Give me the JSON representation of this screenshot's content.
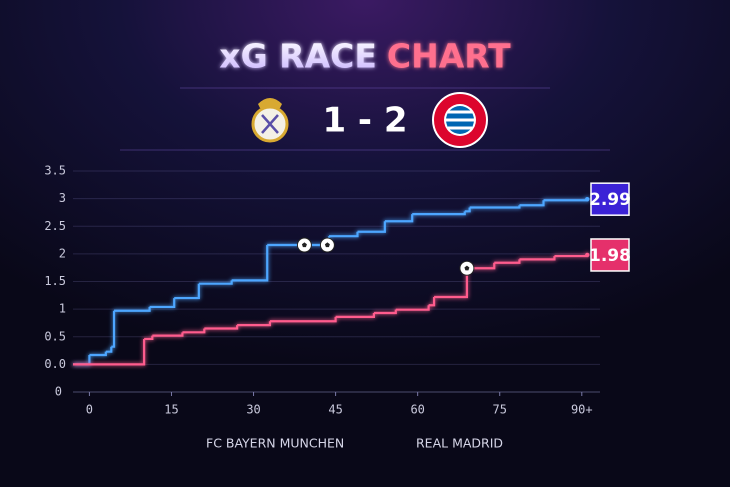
{
  "chart_data": {
    "type": "step",
    "title_main": "xG RACE",
    "title_accent": "CHART",
    "score": "1 - 2",
    "xlim": [
      -3,
      91.5
    ],
    "ylim": [
      -0.5,
      3.5
    ],
    "xticks": [
      0,
      15,
      30,
      45,
      60,
      75,
      {
        "value": 90,
        "label": "90+"
      }
    ],
    "yticks": [
      3.5,
      3,
      2.5,
      2,
      1.5,
      1,
      0.5,
      {
        "value": 0,
        "label": "0.0"
      }
    ],
    "y_baseline_label": "0",
    "grid": true,
    "series": [
      {
        "name": "FC BAYERN MUNCHEN",
        "color": "#4da6ff",
        "end_box_color": "#3b22d6",
        "x": [
          -3,
          0,
          3,
          4,
          4.5,
          11,
          15.5,
          20,
          26,
          32.5,
          43.8,
          49,
          54,
          59,
          68.6,
          69.5,
          78.6,
          83,
          91
        ],
        "values": [
          0,
          0.17,
          0.23,
          0.32,
          0.97,
          1.04,
          1.2,
          1.46,
          1.52,
          2.16,
          2.32,
          2.4,
          2.59,
          2.72,
          2.77,
          2.84,
          2.88,
          2.97,
          2.99
        ],
        "goal_minutes": [
          39.3,
          43.5
        ]
      },
      {
        "name": "REAL MADRID",
        "color": "#ff5c8d",
        "end_box_color": "#e5306b",
        "x": [
          -3,
          10,
          11.5,
          17,
          21,
          27,
          33,
          45,
          52,
          56,
          62,
          63,
          69,
          74,
          78.6,
          85,
          91
        ],
        "values": [
          0,
          0.46,
          0.52,
          0.58,
          0.65,
          0.71,
          0.78,
          0.86,
          0.93,
          0.99,
          1.07,
          1.22,
          1.74,
          1.84,
          1.9,
          1.96,
          1.98
        ],
        "goal_minutes": [
          69
        ]
      }
    ]
  }
}
